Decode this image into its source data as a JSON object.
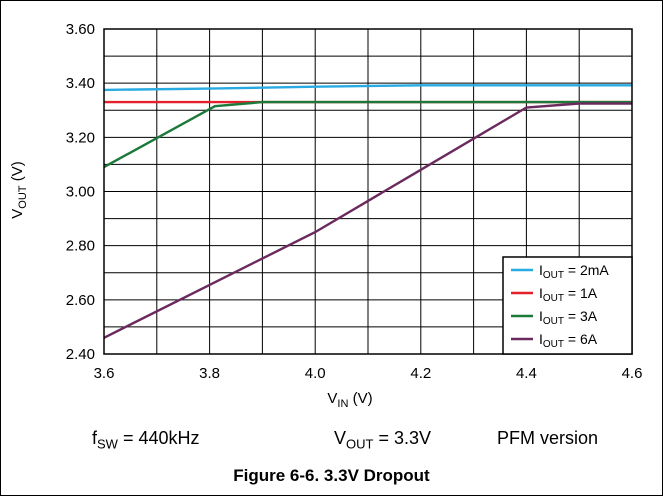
{
  "chart_data": {
    "type": "line",
    "xlabel": {
      "main": "V",
      "sub": "IN",
      "unit": " (V)"
    },
    "ylabel": {
      "main": "V",
      "sub": "OUT",
      "unit": " (V)"
    },
    "xlim": [
      3.6,
      4.6
    ],
    "ylim": [
      2.4,
      3.6
    ],
    "x_ticks": [
      "3.6",
      "3.8",
      "4.0",
      "4.2",
      "4.4",
      "4.6"
    ],
    "y_ticks": [
      "3.60",
      "3.40",
      "3.20",
      "3.00",
      "2.80",
      "2.60",
      "2.40"
    ],
    "grid": true,
    "legend_position": "bottom-right",
    "series": [
      {
        "legend_main": "I",
        "legend_sub": "OUT",
        "legend_tail": " = 2mA",
        "color": "#29ABE2",
        "x": [
          3.6,
          3.8,
          4.0,
          4.2,
          4.6
        ],
        "y": [
          3.375,
          3.38,
          3.387,
          3.392,
          3.392
        ]
      },
      {
        "legend_main": "I",
        "legend_sub": "OUT",
        "legend_tail": " = 1A",
        "color": "#E4202C",
        "x": [
          3.6,
          3.8,
          4.0,
          4.6
        ],
        "y": [
          3.33,
          3.33,
          3.33,
          3.33
        ]
      },
      {
        "legend_main": "I",
        "legend_sub": "OUT",
        "legend_tail": " = 3A",
        "color": "#1B7A3A",
        "x": [
          3.6,
          3.81,
          3.9,
          4.6
        ],
        "y": [
          3.09,
          3.315,
          3.33,
          3.33
        ]
      },
      {
        "legend_main": "I",
        "legend_sub": "OUT",
        "legend_tail": " = 6A",
        "color": "#6B2A5E",
        "x": [
          3.6,
          3.8,
          4.0,
          4.2,
          4.4,
          4.5,
          4.6
        ],
        "y": [
          2.46,
          2.655,
          2.85,
          3.08,
          3.31,
          3.325,
          3.325
        ]
      }
    ]
  },
  "notes": {
    "fsw": {
      "main": "f",
      "sub": "SW",
      "tail": " = 440kHz"
    },
    "vout": {
      "main": "V",
      "sub": "OUT",
      "tail": " = 3.3V"
    },
    "version": "PFM version"
  },
  "caption": "Figure 6-6. 3.3V Dropout"
}
